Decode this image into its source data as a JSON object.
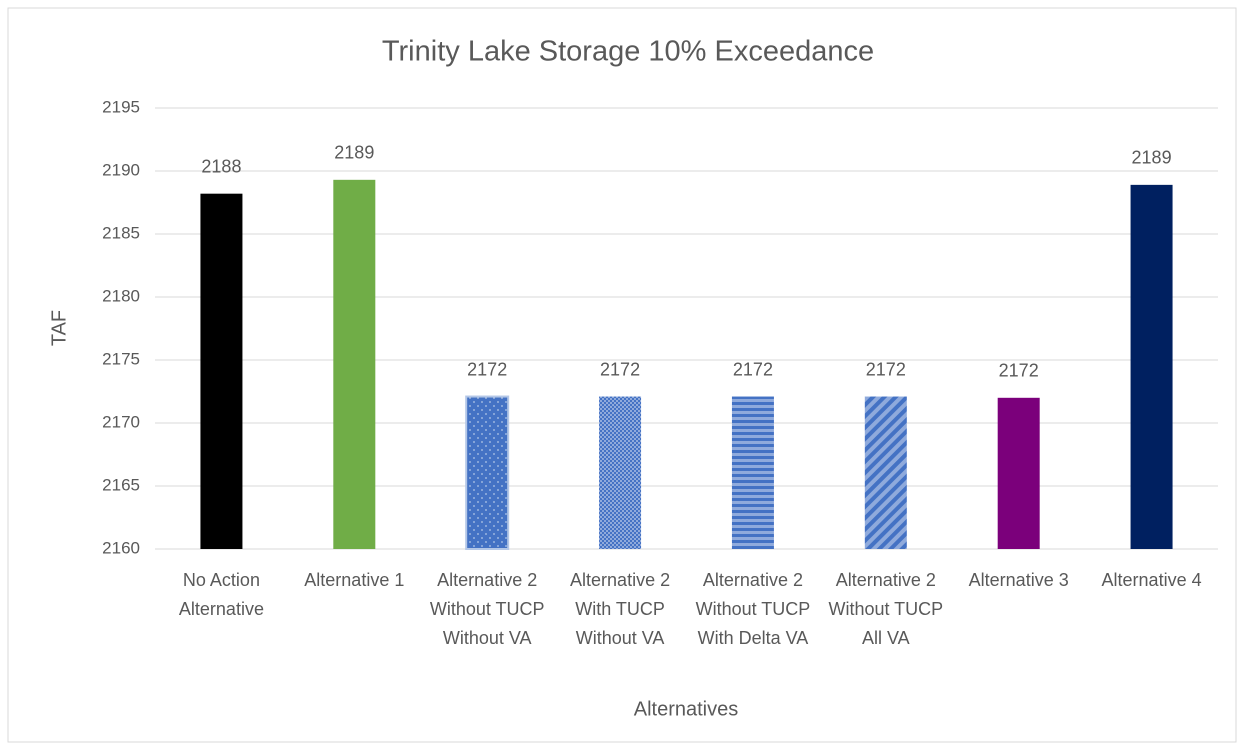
{
  "chart_data": {
    "type": "bar",
    "title": "Trinity Lake Storage 10% Exceedance",
    "x_label": "Alternatives",
    "y_label": "TAF",
    "categories": [
      "No Action Alternative",
      "Alternative 1",
      "Alternative 2 Without TUCP Without VA",
      "Alternative 2 With TUCP Without VA",
      "Alternative 2 Without TUCP With Delta VA",
      "Alternative 2 Without TUCP All VA",
      "Alternative 3",
      "Alternative 4"
    ],
    "values": [
      2188.2,
      2189.3,
      2172.1,
      2172.1,
      2172.1,
      2172.1,
      2172.0,
      2188.9
    ],
    "value_labels": [
      "2188",
      "2189",
      "2172",
      "2172",
      "2172",
      "2172",
      "2172",
      "2189"
    ],
    "colors": [
      "#000000",
      "#70ad47",
      "#4472c4",
      "#4472c4",
      "#4472c4",
      "#4472c4",
      "#7b007b",
      "#002060"
    ],
    "patterns": [
      "solid",
      "solid",
      "dots",
      "checker",
      "horizontal",
      "diagonal",
      "solid",
      "solid"
    ],
    "ylim": [
      2160,
      2195
    ],
    "yticks": [
      2160,
      2165,
      2170,
      2175,
      2180,
      2185,
      2190,
      2195
    ],
    "grid": true
  }
}
